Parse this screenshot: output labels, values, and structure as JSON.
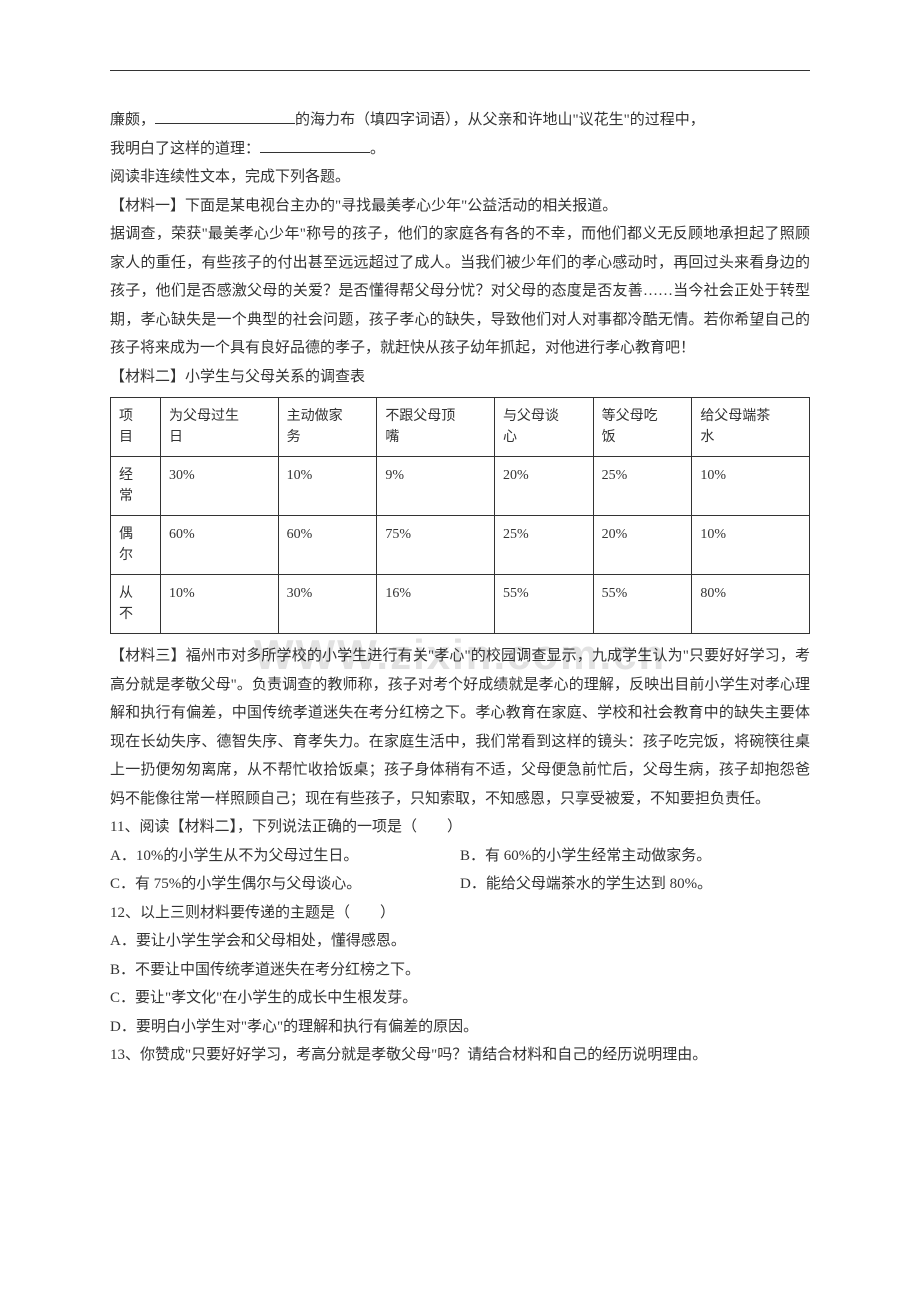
{
  "watermark": "WWW.zixin.com.cn",
  "intro": {
    "line1_prefix": "廉颇，",
    "line1_mid": "的海力布（填四字词语），从父亲和许地山\"议花生\"的过程中，",
    "line2_prefix": "我明白了这样的道理：",
    "line2_suffix": "。"
  },
  "section_read": "阅读非连续性文本，完成下列各题。",
  "material1": {
    "title": "【材料一】下面是某电视台主办的\"寻找最美孝心少年\"公益活动的相关报道。",
    "p1": "据调查，荣获\"最美孝心少年\"称号的孩子，他们的家庭各有各的不幸，而他们都义无反顾地承担起了照顾家人的重任，有些孩子的付出甚至远远超过了成人。当我们被少年们的孝心感动时，再回过头来看身边的孩子，他们是否感激父母的关爱？是否懂得帮父母分忧？对父母的态度是否友善……当今社会正处于转型期，孝心缺失是一个典型的社会问题，孩子孝心的缺失，导致他们对人对事都冷酷无情。若你希望自己的孩子将来成为一个具有良好品德的孝子，就赶快从孩子幼年抓起，对他进行孝心教育吧！"
  },
  "material2": {
    "title": "【材料二】小学生与父母关系的调查表",
    "table": {
      "header_col0_l1": "项",
      "header_col0_l2": "目",
      "headers": [
        {
          "l1": "为父母过生",
          "l2": "日"
        },
        {
          "l1": "主动做家",
          "l2": "务"
        },
        {
          "l1": "不跟父母顶",
          "l2": "嘴"
        },
        {
          "l1": "与父母谈",
          "l2": "心"
        },
        {
          "l1": "等父母吃",
          "l2": "饭"
        },
        {
          "l1": "给父母端茶",
          "l2": "水"
        }
      ],
      "rows": [
        {
          "label_l1": "经",
          "label_l2": "常",
          "cells": [
            "30%",
            "10%",
            "9%",
            "20%",
            "25%",
            "10%"
          ]
        },
        {
          "label_l1": "偶",
          "label_l2": "尔",
          "cells": [
            "60%",
            "60%",
            "75%",
            "25%",
            "20%",
            "10%"
          ]
        },
        {
          "label_l1": "从",
          "label_l2": "不",
          "cells": [
            "10%",
            "30%",
            "16%",
            "55%",
            "55%",
            "80%"
          ]
        }
      ]
    }
  },
  "material3": {
    "p1": "【材料三】福州市对多所学校的小学生进行有关\"孝心\"的校园调查显示，九成学生认为\"只要好好学习，考高分就是孝敬父母\"。负责调查的教师称，孩子对考个好成绩就是孝心的理解，反映出目前小学生对孝心理解和执行有偏差，中国传统孝道迷失在考分红榜之下。孝心教育在家庭、学校和社会教育中的缺失主要体现在长幼失序、德智失序、育孝失力。在家庭生活中，我们常看到这样的镜头：孩子吃完饭，将碗筷往桌上一扔便匆匆离席，从不帮忙收拾饭桌；孩子身体稍有不适，父母便急前忙后，父母生病，孩子却抱怨爸妈不能像往常一样照顾自己；现在有些孩子，只知索取，不知感恩，只享受被爱，不知要担负责任。"
  },
  "q11": {
    "stem": "11、阅读【材料二】，下列说法正确的一项是（　　）",
    "a": "A．10%的小学生从不为父母过生日。",
    "b": "B．有 60%的小学生经常主动做家务。",
    "c": "C．有 75%的小学生偶尔与父母谈心。",
    "d": "D．能给父母端茶水的学生达到 80%。"
  },
  "q12": {
    "stem": "12、以上三则材料要传递的主题是（　　）",
    "a": "A．要让小学生学会和父母相处，懂得感恩。",
    "b": "B．不要让中国传统孝道迷失在考分红榜之下。",
    "c": "C．要让\"孝文化\"在小学生的成长中生根发芽。",
    "d": "D．要明白小学生对\"孝心\"的理解和执行有偏差的原因。"
  },
  "q13": {
    "stem": "13、你赞成\"只要好好学习，考高分就是孝敬父母\"吗？请结合材料和自己的经历说明理由。"
  }
}
